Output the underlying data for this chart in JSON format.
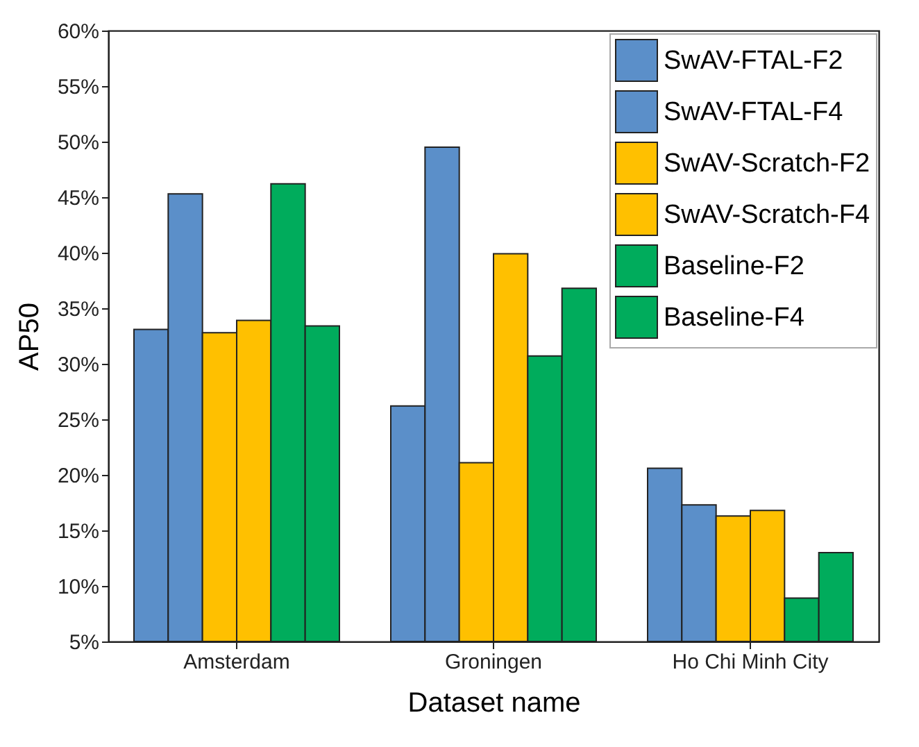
{
  "chart_data": {
    "type": "bar",
    "xlabel": "Dataset name",
    "ylabel": "AP50",
    "categories": [
      "Amsterdam",
      "Groningen",
      "Ho Chi Minh City"
    ],
    "series": [
      {
        "name": "SwAV-FTAL-F2",
        "color": "#5b8fc9",
        "values": [
          33.1,
          26.2,
          20.6
        ]
      },
      {
        "name": "SwAV-FTAL-F4",
        "color": "#5b8fc9",
        "values": [
          45.3,
          49.5,
          17.3
        ]
      },
      {
        "name": "SwAV-Scratch-F2",
        "color": "#ffc000",
        "values": [
          32.8,
          21.1,
          16.3
        ]
      },
      {
        "name": "SwAV-Scratch-F4",
        "color": "#ffc000",
        "values": [
          33.9,
          39.9,
          16.8
        ]
      },
      {
        "name": "Baseline-F2",
        "color": "#00ac5c",
        "values": [
          46.2,
          30.7,
          8.9
        ]
      },
      {
        "name": "Baseline-F4",
        "color": "#00ac5c",
        "values": [
          33.4,
          36.8,
          13.0
        ]
      }
    ],
    "ylim": [
      5,
      60
    ],
    "yticks": [
      {
        "value": 5,
        "label": "5%"
      },
      {
        "value": 10,
        "label": "10%"
      },
      {
        "value": 15,
        "label": "15%"
      },
      {
        "value": 20,
        "label": "20%"
      },
      {
        "value": 25,
        "label": "25%"
      },
      {
        "value": 30,
        "label": "30%"
      },
      {
        "value": 35,
        "label": "35%"
      },
      {
        "value": 40,
        "label": "40%"
      },
      {
        "value": 45,
        "label": "45%"
      },
      {
        "value": 50,
        "label": "50%"
      },
      {
        "value": 55,
        "label": "55%"
      },
      {
        "value": 60,
        "label": "60%"
      }
    ],
    "grid": false,
    "legend": "top right"
  }
}
